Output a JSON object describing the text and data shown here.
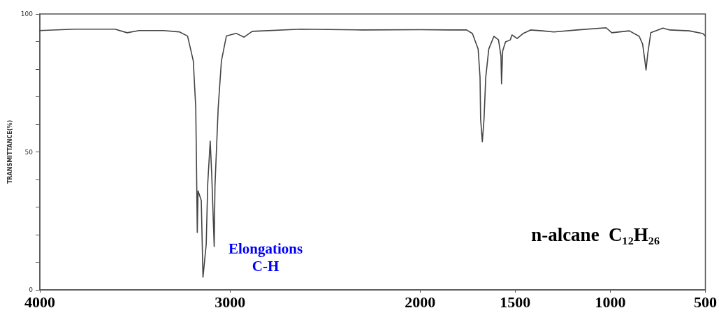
{
  "chart_data": {
    "type": "line",
    "ylabel": "TRANSMITTANCE(%)",
    "annotations": [
      "Elongations\nC-H",
      "n-alcane  C₁₂H₂₆"
    ],
    "x": [
      4000,
      3817,
      3605,
      3541,
      3478,
      3350,
      3265,
      3223,
      3193,
      3180,
      3176,
      3172,
      3168,
      3151,
      3142,
      3125,
      3117,
      3104,
      3096,
      3083,
      3079,
      3062,
      3045,
      3019,
      2968,
      2926,
      2883,
      2628,
      2300,
      2000,
      1847,
      1756,
      1725,
      1695,
      1685,
      1682,
      1673,
      1664,
      1655,
      1639,
      1612,
      1588,
      1575,
      1572,
      1566,
      1551,
      1526,
      1517,
      1490,
      1459,
      1419,
      1358,
      1297,
      1175,
      1022,
      992,
      900,
      848,
      830,
      818,
      812,
      803,
      787,
      723,
      687,
      586,
      513,
      500
    ],
    "series": [
      {
        "color": "#444444",
        "values": [
          94,
          94.5,
          94.5,
          93.2,
          94,
          94,
          93.5,
          92,
          83,
          66,
          45,
          20.8,
          35.9,
          32.4,
          4.6,
          16.5,
          38.5,
          53.9,
          41.8,
          15.7,
          37.5,
          66,
          83,
          92,
          93,
          91.6,
          93.7,
          94.5,
          94.2,
          94.3,
          94.2,
          94.2,
          92.9,
          87.3,
          77,
          62,
          53.7,
          62,
          77,
          87.3,
          91.9,
          90.6,
          84.8,
          74.7,
          86.6,
          89.9,
          90.6,
          92.4,
          91.1,
          92.9,
          94.2,
          93.9,
          93.5,
          94.2,
          95,
          93.2,
          93.9,
          91.9,
          89.1,
          83,
          79.7,
          85.6,
          93.2,
          94.9,
          94.2,
          93.9,
          92.9,
          92
        ]
      }
    ],
    "xlim": [
      4000,
      500
    ],
    "xticks": [
      4000,
      3000,
      2000,
      1500,
      1000,
      500
    ],
    "ylim": [
      0,
      100
    ],
    "yticks": [
      0,
      {
        "value": 10,
        "label": null
      },
      {
        "value": 20,
        "label": null
      },
      {
        "value": 30,
        "label": null
      },
      {
        "value": 40,
        "label": null
      },
      50,
      {
        "value": 60,
        "label": null
      },
      {
        "value": 70,
        "label": null
      },
      {
        "value": 80,
        "label": null
      },
      {
        "value": 90,
        "label": null
      },
      100
    ],
    "grid": false,
    "marker": "none",
    "line_style": "solid"
  }
}
